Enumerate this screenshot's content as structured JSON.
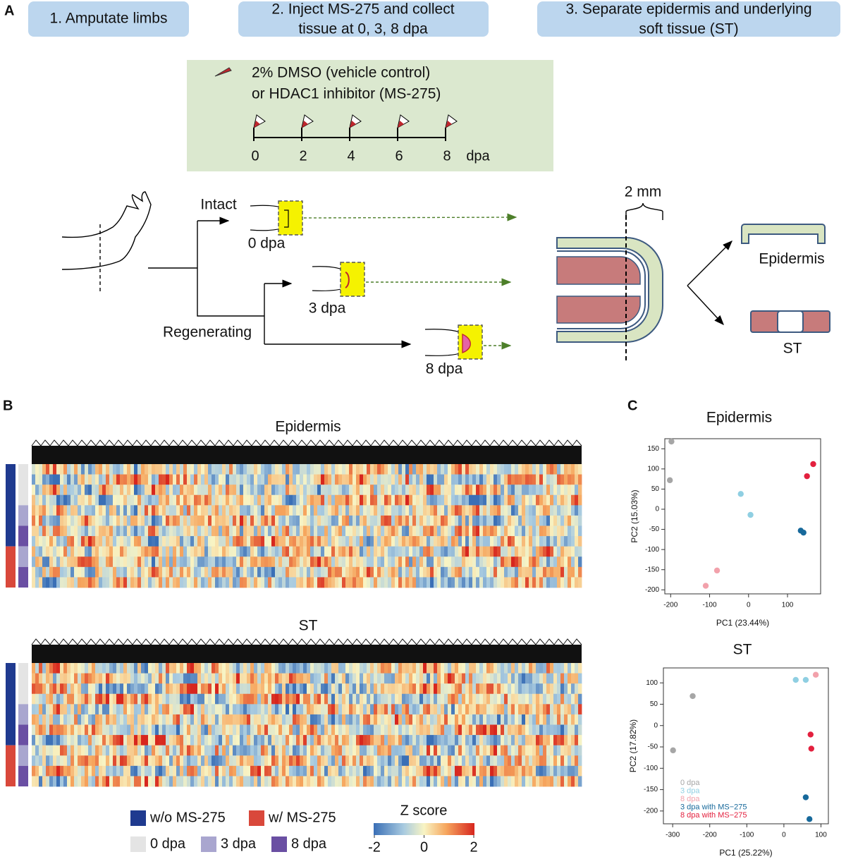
{
  "panel_a": {
    "label": "A",
    "steps": [
      [
        "1. Amputate limbs"
      ],
      [
        "2. Inject MS-275 and collect",
        "tissue at 0, 3, 8 dpa"
      ],
      [
        "3. Separate epidermis and underlying",
        "soft tissue (ST)"
      ]
    ],
    "treatment": [
      "2% DMSO (vehicle control)",
      "or  HDAC1 inhibitor (MS-275)"
    ],
    "timeline": {
      "ticks": [
        0,
        2,
        4,
        6,
        8
      ],
      "unit": "dpa"
    },
    "branches": {
      "intact": "Intact",
      "regenerating": "Regenerating",
      "stages": [
        "0 dpa",
        "3 dpa",
        "8 dpa"
      ]
    },
    "scale": "2 mm",
    "products": [
      "Epidermis",
      "ST"
    ]
  },
  "panel_b": {
    "label": "B",
    "heatmaps": [
      "Epidermis",
      "ST"
    ],
    "legend": {
      "treatment": [
        {
          "name": "w/o MS-275",
          "color": "#1f3a8f"
        },
        {
          "name": "w/ MS-275",
          "color": "#d9483b"
        }
      ],
      "stage": [
        {
          "name": "0 dpa",
          "color": "#e4e4e4"
        },
        {
          "name": "3 dpa",
          "color": "#a9a6cf"
        },
        {
          "name": "8 dpa",
          "color": "#6a4fa3"
        }
      ]
    },
    "colorbar": {
      "title": "Z score",
      "ticks": [
        -2,
        0,
        2
      ]
    }
  },
  "panel_c": {
    "label": "C"
  },
  "chart_data": [
    {
      "type": "scatter",
      "title": "Epidermis",
      "xlabel": "PC1 (23.44%)",
      "ylabel": "PC2 (15.03%)",
      "xlim": [
        -215,
        185
      ],
      "ylim": [
        -210,
        175
      ],
      "xticks": [
        -200,
        -100,
        0,
        100
      ],
      "yticks": [
        -200,
        -150,
        -100,
        -50,
        0,
        50,
        100,
        150
      ],
      "series": [
        {
          "color": "#a6a6a6",
          "x": [
            -198,
            -202
          ],
          "values": [
            168,
            72
          ]
        },
        {
          "color": "#8fcfe2",
          "x": [
            -20,
            5
          ],
          "values": [
            38,
            -14
          ]
        },
        {
          "color": "#f2a1ab",
          "x": [
            -81,
            -110
          ],
          "values": [
            -152,
            -190
          ]
        },
        {
          "color": "#17699b",
          "x": [
            134,
            141
          ],
          "values": [
            -53,
            -58
          ]
        },
        {
          "color": "#e3203e",
          "x": [
            166,
            150
          ],
          "values": [
            112,
            82
          ]
        }
      ]
    },
    {
      "type": "scatter",
      "title": "ST",
      "xlabel": "PC1 (25.22%)",
      "ylabel": "PC2 (17.82%)",
      "xlim": [
        -325,
        120
      ],
      "ylim": [
        -230,
        135
      ],
      "xticks": [
        -300,
        -200,
        -100,
        0,
        100
      ],
      "yticks": [
        -200,
        -150,
        -100,
        -50,
        0,
        50,
        100
      ],
      "legend": "bottom-left",
      "series": [
        {
          "name": "0 dpa",
          "color": "#a6a6a6",
          "x": [
            -299,
            -246
          ],
          "values": [
            -58,
            69
          ]
        },
        {
          "name": "3 dpa",
          "color": "#8fcfe2",
          "x": [
            32,
            59
          ],
          "values": [
            107,
            107
          ]
        },
        {
          "name": "8 dpa",
          "color": "#f2a1ab",
          "x": [
            86
          ],
          "values": [
            119
          ]
        },
        {
          "name": "3 dpa with MS−275",
          "color": "#17699b",
          "x": [
            59,
            69
          ],
          "values": [
            -168,
            -219
          ]
        },
        {
          "name": "8 dpa with MS−275",
          "color": "#e3203e",
          "x": [
            72,
            74
          ],
          "values": [
            -21,
            -54
          ]
        }
      ]
    }
  ]
}
